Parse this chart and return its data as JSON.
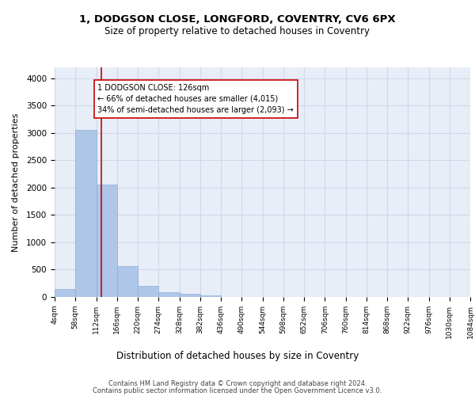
{
  "title1": "1, DODGSON CLOSE, LONGFORD, COVENTRY, CV6 6PX",
  "title2": "Size of property relative to detached houses in Coventry",
  "xlabel": "Distribution of detached houses by size in Coventry",
  "ylabel": "Number of detached properties",
  "bar_values": [
    140,
    3060,
    2060,
    560,
    200,
    80,
    55,
    35,
    0,
    0,
    0,
    0,
    0,
    0,
    0,
    0,
    0,
    0,
    0,
    0
  ],
  "bin_edges": [
    4,
    58,
    112,
    166,
    220,
    274,
    328,
    382,
    436,
    490,
    544,
    598,
    652,
    706,
    760,
    814,
    868,
    922,
    976,
    1030,
    1084
  ],
  "x_tick_labels": [
    "4sqm",
    "58sqm",
    "112sqm",
    "166sqm",
    "220sqm",
    "274sqm",
    "328sqm",
    "382sqm",
    "436sqm",
    "490sqm",
    "544sqm",
    "598sqm",
    "652sqm",
    "706sqm",
    "760sqm",
    "814sqm",
    "868sqm",
    "922sqm",
    "976sqm",
    "1030sqm",
    "1084sqm"
  ],
  "bar_color": "#aec6e8",
  "bar_edge_color": "#aec6e8",
  "grid_color": "#d0d8e8",
  "background_color": "#e8eef8",
  "property_line_x": 126,
  "property_line_color": "#cc0000",
  "annotation_text": "1 DODGSON CLOSE: 126sqm\n← 66% of detached houses are smaller (4,015)\n34% of semi-detached houses are larger (2,093) →",
  "annotation_box_color": "#ffffff",
  "annotation_box_edge": "#cc0000",
  "ylim": [
    0,
    4200
  ],
  "yticks": [
    0,
    500,
    1000,
    1500,
    2000,
    2500,
    3000,
    3500,
    4000
  ],
  "footer_line1": "Contains HM Land Registry data © Crown copyright and database right 2024.",
  "footer_line2": "Contains public sector information licensed under the Open Government Licence v3.0."
}
